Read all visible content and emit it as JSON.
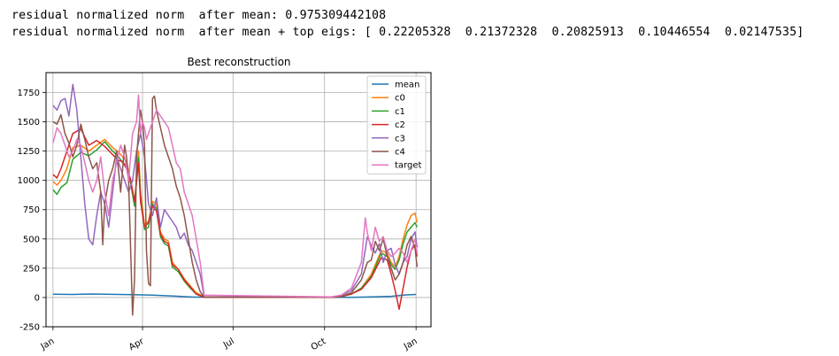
{
  "output": {
    "line1": "residual normalized norm  after mean: 0.975309442108",
    "line2": "residual normalized norm  after mean + top eigs: [ 0.22205328  0.21372328  0.20825913  0.10446554  0.02147535]"
  },
  "chart_data": {
    "type": "line",
    "title": "Best reconstruction",
    "xlabel": "",
    "ylabel": "",
    "x_ticks": [
      "Jan",
      "Apr",
      "Jul",
      "Oct",
      "Jan"
    ],
    "x_tick_pos": [
      0,
      90,
      181,
      273,
      365
    ],
    "xlim": [
      -7,
      380
    ],
    "y_ticks": [
      -250,
      0,
      250,
      500,
      750,
      1000,
      1250,
      1500,
      1750
    ],
    "ylim": [
      -250,
      1920
    ],
    "grid": true,
    "legend": "top-right",
    "colors": {
      "mean": "#1f77b4",
      "c0": "#ff7f0e",
      "c1": "#2ca02c",
      "c2": "#d62728",
      "c3": "#9467bd",
      "c4": "#8c564b",
      "target": "#e377c2"
    },
    "series": [
      {
        "name": "mean",
        "x": [
          0,
          20,
          40,
          60,
          80,
          100,
          120,
          140,
          200,
          280,
          300,
          320,
          340,
          355,
          365
        ],
        "y": [
          28,
          26,
          30,
          27,
          24,
          20,
          12,
          4,
          2,
          2,
          2,
          5,
          10,
          22,
          26
        ]
      },
      {
        "name": "c0",
        "x": [
          0,
          4,
          8,
          14,
          20,
          28,
          36,
          44,
          52,
          60,
          66,
          70,
          74,
          78,
          82,
          86,
          88,
          92,
          96,
          100,
          104,
          108,
          112,
          116,
          120,
          126,
          132,
          138,
          144,
          152,
          280,
          290,
          300,
          310,
          320,
          330,
          336,
          340,
          344,
          348,
          352,
          356,
          360,
          364,
          366
        ],
        "y": [
          990,
          960,
          1000,
          1100,
          1280,
          1300,
          1250,
          1300,
          1350,
          1280,
          1240,
          1200,
          1160,
          1000,
          800,
          1250,
          900,
          620,
          650,
          820,
          800,
          560,
          500,
          480,
          300,
          240,
          160,
          100,
          40,
          5,
          5,
          10,
          30,
          80,
          200,
          400,
          380,
          300,
          260,
          350,
          500,
          620,
          700,
          720,
          640
        ]
      },
      {
        "name": "c1",
        "x": [
          0,
          4,
          8,
          14,
          20,
          28,
          36,
          44,
          52,
          60,
          66,
          70,
          74,
          78,
          82,
          86,
          88,
          92,
          96,
          100,
          104,
          108,
          112,
          116,
          120,
          126,
          132,
          138,
          144,
          152,
          280,
          290,
          300,
          310,
          320,
          330,
          336,
          340,
          344,
          348,
          352,
          356,
          360,
          364,
          366
        ],
        "y": [
          920,
          880,
          940,
          980,
          1180,
          1240,
          1210,
          1260,
          1330,
          1250,
          1200,
          1150,
          1130,
          980,
          780,
          1200,
          860,
          580,
          600,
          800,
          760,
          520,
          460,
          440,
          260,
          220,
          140,
          80,
          30,
          3,
          3,
          8,
          30,
          80,
          180,
          380,
          350,
          280,
          240,
          320,
          460,
          560,
          600,
          640,
          600
        ]
      },
      {
        "name": "c2",
        "x": [
          0,
          4,
          8,
          14,
          20,
          28,
          36,
          44,
          52,
          60,
          66,
          70,
          74,
          78,
          82,
          86,
          88,
          92,
          96,
          100,
          104,
          108,
          112,
          116,
          120,
          126,
          132,
          138,
          144,
          152,
          280,
          290,
          300,
          310,
          320,
          330,
          336,
          340,
          344,
          348,
          352,
          356,
          360,
          364,
          366
        ],
        "y": [
          1050,
          1020,
          1100,
          1250,
          1400,
          1440,
          1300,
          1340,
          1290,
          1220,
          1170,
          1160,
          1100,
          1010,
          820,
          1150,
          820,
          600,
          640,
          780,
          740,
          540,
          480,
          460,
          280,
          240,
          150,
          90,
          30,
          2,
          2,
          8,
          30,
          70,
          170,
          340,
          320,
          200,
          60,
          -100,
          80,
          260,
          400,
          450,
          350
        ]
      },
      {
        "name": "c3",
        "x": [
          0,
          4,
          8,
          12,
          16,
          20,
          24,
          28,
          32,
          36,
          40,
          44,
          48,
          52,
          56,
          60,
          64,
          68,
          72,
          76,
          80,
          84,
          88,
          92,
          96,
          100,
          104,
          108,
          112,
          116,
          120,
          124,
          128,
          132,
          136,
          140,
          144,
          148,
          152,
          280,
          290,
          300,
          310,
          316,
          320,
          324,
          328,
          332,
          336,
          340,
          344,
          348,
          352,
          356,
          360,
          364,
          366
        ],
        "y": [
          1640,
          1600,
          1680,
          1700,
          1550,
          1820,
          1600,
          1200,
          800,
          500,
          450,
          700,
          900,
          800,
          600,
          900,
          1200,
          1100,
          1000,
          900,
          1000,
          1250,
          1400,
          1200,
          800,
          700,
          850,
          600,
          750,
          700,
          650,
          600,
          500,
          550,
          450,
          400,
          300,
          200,
          5,
          5,
          20,
          60,
          200,
          520,
          440,
          380,
          460,
          300,
          400,
          420,
          280,
          200,
          300,
          350,
          500,
          560,
          430
        ]
      },
      {
        "name": "c4",
        "x": [
          0,
          4,
          8,
          12,
          16,
          20,
          24,
          28,
          32,
          36,
          40,
          44,
          48,
          50,
          52,
          56,
          60,
          64,
          68,
          70,
          72,
          74,
          76,
          80,
          82,
          84,
          86,
          88,
          90,
          92,
          94,
          96,
          98,
          100,
          102,
          104,
          108,
          112,
          116,
          120,
          124,
          128,
          132,
          136,
          140,
          144,
          148,
          152,
          280,
          290,
          300,
          310,
          316,
          320,
          324,
          328,
          332,
          336,
          340,
          344,
          348,
          352,
          356,
          360,
          364,
          366
        ],
        "y": [
          1500,
          1480,
          1560,
          1400,
          1320,
          1200,
          1300,
          1480,
          1350,
          1200,
          1100,
          1150,
          900,
          450,
          800,
          1000,
          1100,
          1250,
          900,
          1100,
          1300,
          1200,
          1000,
          -150,
          150,
          1200,
          1400,
          1600,
          1500,
          1300,
          400,
          120,
          100,
          1700,
          1720,
          1600,
          1450,
          1300,
          1200,
          1100,
          950,
          850,
          700,
          500,
          300,
          150,
          50,
          3,
          3,
          10,
          40,
          150,
          300,
          320,
          480,
          400,
          500,
          350,
          250,
          150,
          200,
          300,
          450,
          520,
          420,
          260
        ]
      },
      {
        "name": "target",
        "x": [
          0,
          4,
          8,
          12,
          16,
          20,
          24,
          28,
          32,
          36,
          40,
          44,
          48,
          52,
          56,
          60,
          64,
          68,
          72,
          76,
          80,
          84,
          86,
          88,
          90,
          92,
          94,
          96,
          100,
          104,
          108,
          112,
          116,
          120,
          124,
          128,
          132,
          136,
          140,
          144,
          148,
          152,
          280,
          290,
          300,
          310,
          314,
          316,
          320,
          324,
          328,
          332,
          336,
          340,
          344,
          348,
          352,
          356,
          360,
          364,
          366
        ],
        "y": [
          1320,
          1450,
          1400,
          1300,
          1200,
          1250,
          1350,
          1300,
          1150,
          1000,
          900,
          1000,
          1200,
          900,
          700,
          1000,
          1150,
          1300,
          1200,
          1000,
          1400,
          1500,
          1730,
          1400,
          1500,
          1450,
          1350,
          1400,
          1500,
          1600,
          1550,
          1500,
          1450,
          1300,
          1150,
          1100,
          900,
          800,
          700,
          500,
          300,
          20,
          5,
          20,
          80,
          300,
          680,
          550,
          400,
          600,
          480,
          520,
          400,
          350,
          380,
          420,
          380,
          300,
          400,
          500,
          380
        ]
      }
    ]
  }
}
